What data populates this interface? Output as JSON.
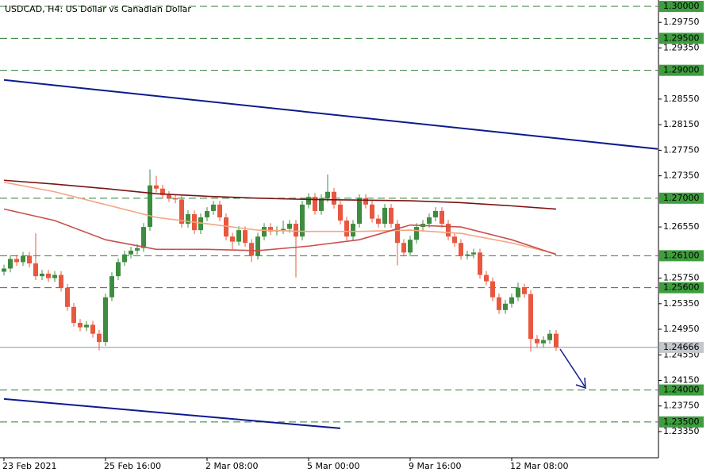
{
  "chart_data": {
    "type": "candlestick",
    "title": "USDCAD, H4:  US Dollar vs Canadian Dollar",
    "up_color": "#3d8c40",
    "down_color": "#e8573f",
    "categories": [
      "23 Feb 2021",
      null,
      null,
      null,
      null,
      null,
      null,
      null,
      null,
      null,
      null,
      null,
      null,
      null,
      null,
      null,
      "25 Feb 16:00",
      null,
      null,
      null,
      null,
      null,
      null,
      null,
      null,
      null,
      null,
      null,
      null,
      null,
      null,
      null,
      "2 Mar 08:00",
      null,
      null,
      null,
      null,
      null,
      null,
      null,
      null,
      null,
      null,
      null,
      null,
      null,
      null,
      null,
      "5 Mar 00:00",
      null,
      null,
      null,
      null,
      null,
      null,
      null,
      null,
      null,
      null,
      null,
      null,
      null,
      null,
      null,
      "9 Mar 16:00",
      null,
      null,
      null,
      null,
      null,
      null,
      null,
      null,
      null,
      null,
      null,
      null,
      null,
      null,
      null,
      "12 Mar 08:00",
      null,
      null,
      null,
      null,
      null,
      null,
      null
    ],
    "open": [
      1.2585,
      1.259,
      1.2605,
      1.26,
      1.261,
      1.2598,
      1.2578,
      1.2582,
      1.2575,
      1.258,
      1.256,
      1.253,
      1.2505,
      1.2498,
      1.2502,
      1.2488,
      1.2475,
      1.2545,
      1.2578,
      1.26,
      1.2612,
      1.2618,
      1.2622,
      1.2655,
      1.272,
      1.2715,
      1.2705,
      1.27,
      1.2698,
      1.266,
      1.2675,
      1.265,
      1.267,
      1.268,
      1.269,
      1.267,
      1.264,
      1.2632,
      1.265,
      1.263,
      1.261,
      1.264,
      1.2655,
      1.2648,
      1.265,
      1.2652,
      1.266,
      1.264,
      1.269,
      1.2702,
      1.268,
      1.27,
      1.271,
      1.269,
      1.2665,
      1.264,
      1.266,
      1.27,
      1.269,
      1.2668,
      1.266,
      1.2685,
      1.266,
      1.263,
      1.2615,
      1.2635,
      1.2655,
      1.266,
      1.267,
      1.268,
      1.266,
      1.264,
      1.263,
      1.261,
      1.2612,
      1.2615,
      1.258,
      1.257,
      1.2545,
      1.2525,
      1.2535,
      1.2545,
      1.256,
      1.255,
      1.248,
      1.2473,
      1.2478,
      1.2488
    ],
    "high": [
      1.2596,
      1.2611,
      1.2611,
      1.2616,
      1.2616,
      1.2645,
      1.2588,
      1.2588,
      1.2586,
      1.2586,
      1.2566,
      1.2536,
      1.2511,
      1.2508,
      1.2508,
      1.2494,
      1.2551,
      1.2584,
      1.2606,
      1.2618,
      1.2624,
      1.2628,
      1.2661,
      1.2745,
      1.2735,
      1.2721,
      1.2711,
      1.2706,
      1.2704,
      1.2681,
      1.2681,
      1.2676,
      1.2686,
      1.2696,
      1.2696,
      1.2676,
      1.2646,
      1.2656,
      1.2656,
      1.2636,
      1.2646,
      1.2661,
      1.2661,
      1.2656,
      1.2665,
      1.2666,
      1.2666,
      1.2696,
      1.2708,
      1.2708,
      1.2706,
      1.2737,
      1.2716,
      1.2696,
      1.2671,
      1.2666,
      1.2706,
      1.2706,
      1.2696,
      1.2674,
      1.2691,
      1.2691,
      1.2666,
      1.2636,
      1.2641,
      1.2661,
      1.2666,
      1.2676,
      1.2686,
      1.2686,
      1.2666,
      1.2646,
      1.2636,
      1.2618,
      1.2621,
      1.2621,
      1.2586,
      1.2576,
      1.2551,
      1.2541,
      1.2551,
      1.2568,
      1.2566,
      1.2556,
      1.2486,
      1.2484,
      1.2494,
      1.2494
    ],
    "low": [
      1.2579,
      1.2584,
      1.2594,
      1.2594,
      1.2592,
      1.2572,
      1.2572,
      1.2569,
      1.2569,
      1.2554,
      1.2524,
      1.2499,
      1.2492,
      1.2492,
      1.2482,
      1.2462,
      1.2469,
      1.2539,
      1.2572,
      1.2594,
      1.2606,
      1.2612,
      1.2616,
      1.2649,
      1.2709,
      1.2699,
      1.2694,
      1.2692,
      1.2654,
      1.2654,
      1.2644,
      1.2644,
      1.2664,
      1.2674,
      1.2664,
      1.2634,
      1.262,
      1.2626,
      1.2624,
      1.26,
      1.2604,
      1.2634,
      1.2642,
      1.2642,
      1.2644,
      1.2646,
      1.2576,
      1.2634,
      1.2684,
      1.2674,
      1.2674,
      1.2694,
      1.2684,
      1.2659,
      1.2634,
      1.2634,
      1.2654,
      1.2684,
      1.2662,
      1.2654,
      1.2654,
      1.2654,
      1.2595,
      1.2609,
      1.2609,
      1.2629,
      1.2649,
      1.2654,
      1.2664,
      1.2654,
      1.2634,
      1.2624,
      1.2604,
      1.2604,
      1.2606,
      1.2574,
      1.2564,
      1.2539,
      1.2519,
      1.2519,
      1.2529,
      1.2539,
      1.2544,
      1.246,
      1.2467,
      1.2467,
      1.2472,
      1.2461
    ],
    "close": [
      1.259,
      1.2605,
      1.26,
      1.261,
      1.2598,
      1.2578,
      1.2582,
      1.2575,
      1.258,
      1.256,
      1.253,
      1.2505,
      1.2498,
      1.2502,
      1.2488,
      1.2475,
      1.2545,
      1.2578,
      1.26,
      1.2612,
      1.2618,
      1.2622,
      1.2655,
      1.272,
      1.2715,
      1.2705,
      1.27,
      1.2698,
      1.266,
      1.2675,
      1.265,
      1.267,
      1.268,
      1.269,
      1.267,
      1.264,
      1.2632,
      1.265,
      1.263,
      1.261,
      1.264,
      1.2655,
      1.2648,
      1.265,
      1.2652,
      1.266,
      1.264,
      1.269,
      1.2702,
      1.268,
      1.27,
      1.271,
      1.269,
      1.2665,
      1.264,
      1.266,
      1.27,
      1.269,
      1.2668,
      1.266,
      1.2685,
      1.266,
      1.263,
      1.2615,
      1.2635,
      1.2655,
      1.266,
      1.267,
      1.268,
      1.266,
      1.264,
      1.263,
      1.261,
      1.2612,
      1.2615,
      1.258,
      1.257,
      1.2545,
      1.2525,
      1.2535,
      1.2545,
      1.256,
      1.255,
      1.248,
      1.2473,
      1.2478,
      1.2488,
      1.2467
    ],
    "moving_averages": [
      {
        "color": "#7b1414",
        "x": [
          0,
          8,
          16,
          24,
          32,
          40,
          48,
          56,
          64,
          72,
          80,
          87
        ],
        "values": [
          1.2728,
          1.2722,
          1.2715,
          1.2707,
          1.2703,
          1.27,
          1.2698,
          1.2697,
          1.2696,
          1.2693,
          1.2688,
          1.2683
        ]
      },
      {
        "color": "#f4a582",
        "x": [
          0,
          8,
          16,
          24,
          32,
          40,
          48,
          56,
          64,
          72,
          80,
          87
        ],
        "values": [
          1.2725,
          1.271,
          1.269,
          1.267,
          1.266,
          1.265,
          1.2648,
          1.2648,
          1.265,
          1.2645,
          1.263,
          1.2613
        ]
      },
      {
        "color": "#c8504b",
        "x": [
          0,
          8,
          16,
          24,
          32,
          40,
          48,
          56,
          64,
          72,
          80,
          87
        ],
        "values": [
          1.2683,
          1.2665,
          1.2635,
          1.262,
          1.262,
          1.2618,
          1.2625,
          1.2635,
          1.2658,
          1.2655,
          1.2635,
          1.2612
        ]
      }
    ],
    "trendlines": [
      {
        "color": "#0d1a8c",
        "x": [
          0,
          103
        ],
        "values": [
          1.2885,
          1.2777
        ]
      },
      {
        "color": "#0d1a8c",
        "x": [
          0,
          53
        ],
        "values": [
          1.2386,
          1.234
        ]
      }
    ],
    "levels": [
      {
        "value": 1.3,
        "label": "1.30000"
      },
      {
        "value": 1.295,
        "label": "1.29500"
      },
      {
        "value": 1.29,
        "label": "1.29000"
      },
      {
        "value": 1.27,
        "label": "1.27000"
      },
      {
        "value": 1.261,
        "label": "1.26100"
      },
      {
        "value": 1.256,
        "label": "1.25600"
      },
      {
        "value": 1.24,
        "label": "1.24000"
      },
      {
        "value": 1.235,
        "label": "1.23500"
      }
    ],
    "level_color": "#2e7d32",
    "current_price": {
      "value": 1.24666,
      "label": "1.24666"
    },
    "ylim": [
      1.2294,
      1.301
    ],
    "yticks": [
      {
        "value": 1.2975,
        "label": "1.29750"
      },
      {
        "value": 1.2935,
        "label": "1.29350"
      },
      {
        "value": 1.2855,
        "label": "1.28550"
      },
      {
        "value": 1.2815,
        "label": "1.28150"
      },
      {
        "value": 1.2775,
        "label": "1.27750"
      },
      {
        "value": 1.2735,
        "label": "1.27350"
      },
      {
        "value": 1.2655,
        "label": "1.26550"
      },
      {
        "value": 1.2575,
        "label": "1.25750"
      },
      {
        "value": 1.2535,
        "label": "1.25350"
      },
      {
        "value": 1.2495,
        "label": "1.24950"
      },
      {
        "value": 1.2455,
        "label": "1.24550"
      },
      {
        "value": 1.2415,
        "label": "1.24150"
      },
      {
        "value": 1.2375,
        "label": "1.23750"
      },
      {
        "value": 1.2335,
        "label": "1.23350"
      }
    ]
  }
}
